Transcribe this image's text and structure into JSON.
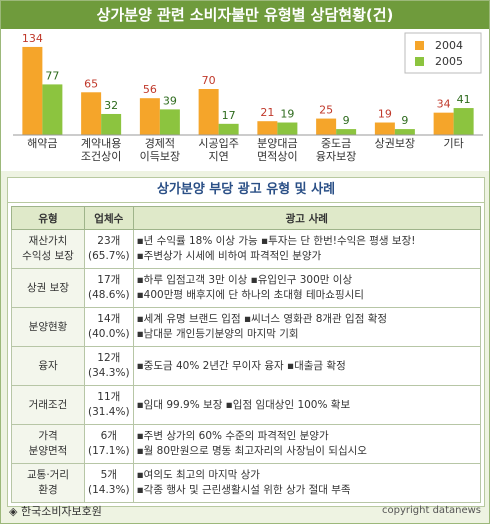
{
  "chart_data": {
    "type": "bar",
    "title": "상가분양 관련 소비자불만 유형별 상담현황(건)",
    "categories": [
      "해약금",
      "계약내용\n조건상이",
      "경제적\n이득보장",
      "시공입주\n지연",
      "분양대금\n면적상이",
      "중도금\n융자보장",
      "상권보장",
      "기타"
    ],
    "series": [
      {
        "name": "2004",
        "color": "#f5a52a",
        "label_color": "#c0392b",
        "values": [
          134,
          65,
          56,
          70,
          21,
          25,
          19,
          34
        ]
      },
      {
        "name": "2005",
        "color": "#8cc43f",
        "label_color": "#2e6b1e",
        "values": [
          77,
          32,
          39,
          17,
          19,
          9,
          9,
          41
        ]
      }
    ],
    "ylim": [
      0,
      140
    ],
    "legend": "top-right"
  },
  "table": {
    "title": "상가분양 부당 광고 유형 및 사례",
    "header": [
      "유형",
      "업체수",
      "광고 사례"
    ],
    "rows": [
      [
        "재산가치\n수익성 보장",
        "23개\n(65.7%)",
        "▪년 수익률 18% 이상 가능  ▪투자는 단 한번!수익은 평생 보장!\n▪주변상가 시세에 비하여 파격적인 분양가"
      ],
      [
        "상권 보장",
        "17개\n(48.6%)",
        "▪하루 입점고객 3만 이상  ▪유입인구 300만 이상\n▪400만평 배후지에 단 하나의 초대형 테마쇼핑시티"
      ],
      [
        "분양현황",
        "14개\n(40.0%)",
        "▪세계 유명 브랜드 입점  ▪씨너스 영화관 8개관 입점 확정\n▪남대문 개인등기분양의 마지막 기회"
      ],
      [
        "융자",
        "12개\n(34.3%)",
        "▪중도금 40% 2년간 무이자 융자  ▪대출금 확정"
      ],
      [
        "거래조건",
        "11개\n(31.4%)",
        "▪임대 99.9% 보장  ▪입점 임대상인 100% 확보"
      ],
      [
        "가격\n분양면적",
        "6개\n(17.1%)",
        "▪주변 상가의 60% 수준의 파격적인 분양가\n▪월 80만원으로 명동 최고자리의 사장님이 되십시오"
      ],
      [
        "교통·거리\n환경",
        "5개\n(14.3%)",
        "▪여의도 최고의 마지막 상가\n▪각종 행사 및 근린생활시설 위한 상가 절대 부족"
      ]
    ]
  },
  "footer": {
    "source": "◈ 한국소비자보호원",
    "copyright": "copyright datanews"
  }
}
